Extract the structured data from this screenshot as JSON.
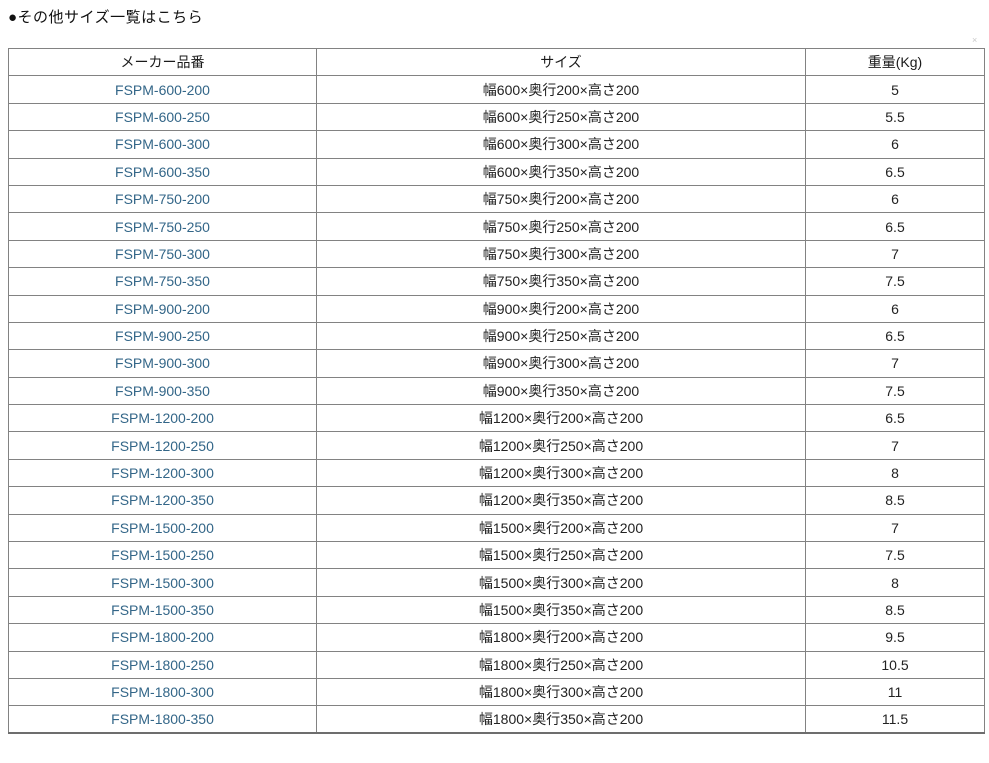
{
  "page": {
    "title": "●その他サイズ一覧はこちら"
  },
  "colors": {
    "link": "#336688",
    "grid_border": "#828282",
    "outer_border": "#6d6d6d",
    "text": "#222222",
    "background": "#ffffff"
  },
  "icons": {
    "broken_image_glyph": "×"
  },
  "table": {
    "headers": [
      "メーカー品番",
      "サイズ",
      "重量(Kg)"
    ],
    "rows": [
      {
        "part_number": "FSPM-600-200",
        "size": "幅600×奥行200×高さ200",
        "weight": "5"
      },
      {
        "part_number": "FSPM-600-250",
        "size": "幅600×奥行250×高さ200",
        "weight": "5.5"
      },
      {
        "part_number": "FSPM-600-300",
        "size": "幅600×奥行300×高さ200",
        "weight": "6"
      },
      {
        "part_number": "FSPM-600-350",
        "size": "幅600×奥行350×高さ200",
        "weight": "6.5"
      },
      {
        "part_number": "FSPM-750-200",
        "size": "幅750×奥行200×高さ200",
        "weight": "6"
      },
      {
        "part_number": "FSPM-750-250",
        "size": "幅750×奥行250×高さ200",
        "weight": "6.5"
      },
      {
        "part_number": "FSPM-750-300",
        "size": "幅750×奥行300×高さ200",
        "weight": "7"
      },
      {
        "part_number": "FSPM-750-350",
        "size": "幅750×奥行350×高さ200",
        "weight": "7.5"
      },
      {
        "part_number": "FSPM-900-200",
        "size": "幅900×奥行200×高さ200",
        "weight": "6"
      },
      {
        "part_number": "FSPM-900-250",
        "size": "幅900×奥行250×高さ200",
        "weight": "6.5"
      },
      {
        "part_number": "FSPM-900-300",
        "size": "幅900×奥行300×高さ200",
        "weight": "7"
      },
      {
        "part_number": "FSPM-900-350",
        "size": "幅900×奥行350×高さ200",
        "weight": "7.5"
      },
      {
        "part_number": "FSPM-1200-200",
        "size": "幅1200×奥行200×高さ200",
        "weight": "6.5"
      },
      {
        "part_number": "FSPM-1200-250",
        "size": "幅1200×奥行250×高さ200",
        "weight": "7"
      },
      {
        "part_number": "FSPM-1200-300",
        "size": "幅1200×奥行300×高さ200",
        "weight": "8"
      },
      {
        "part_number": "FSPM-1200-350",
        "size": "幅1200×奥行350×高さ200",
        "weight": "8.5"
      },
      {
        "part_number": "FSPM-1500-200",
        "size": "幅1500×奥行200×高さ200",
        "weight": "7"
      },
      {
        "part_number": "FSPM-1500-250",
        "size": "幅1500×奥行250×高さ200",
        "weight": "7.5"
      },
      {
        "part_number": "FSPM-1500-300",
        "size": "幅1500×奥行300×高さ200",
        "weight": "8"
      },
      {
        "part_number": "FSPM-1500-350",
        "size": "幅1500×奥行350×高さ200",
        "weight": "8.5"
      },
      {
        "part_number": "FSPM-1800-200",
        "size": "幅1800×奥行200×高さ200",
        "weight": "9.5"
      },
      {
        "part_number": "FSPM-1800-250",
        "size": "幅1800×奥行250×高さ200",
        "weight": "10.5"
      },
      {
        "part_number": "FSPM-1800-300",
        "size": "幅1800×奥行300×高さ200",
        "weight": "11"
      },
      {
        "part_number": "FSPM-1800-350",
        "size": "幅1800×奥行350×高さ200",
        "weight": "11.5"
      }
    ]
  }
}
